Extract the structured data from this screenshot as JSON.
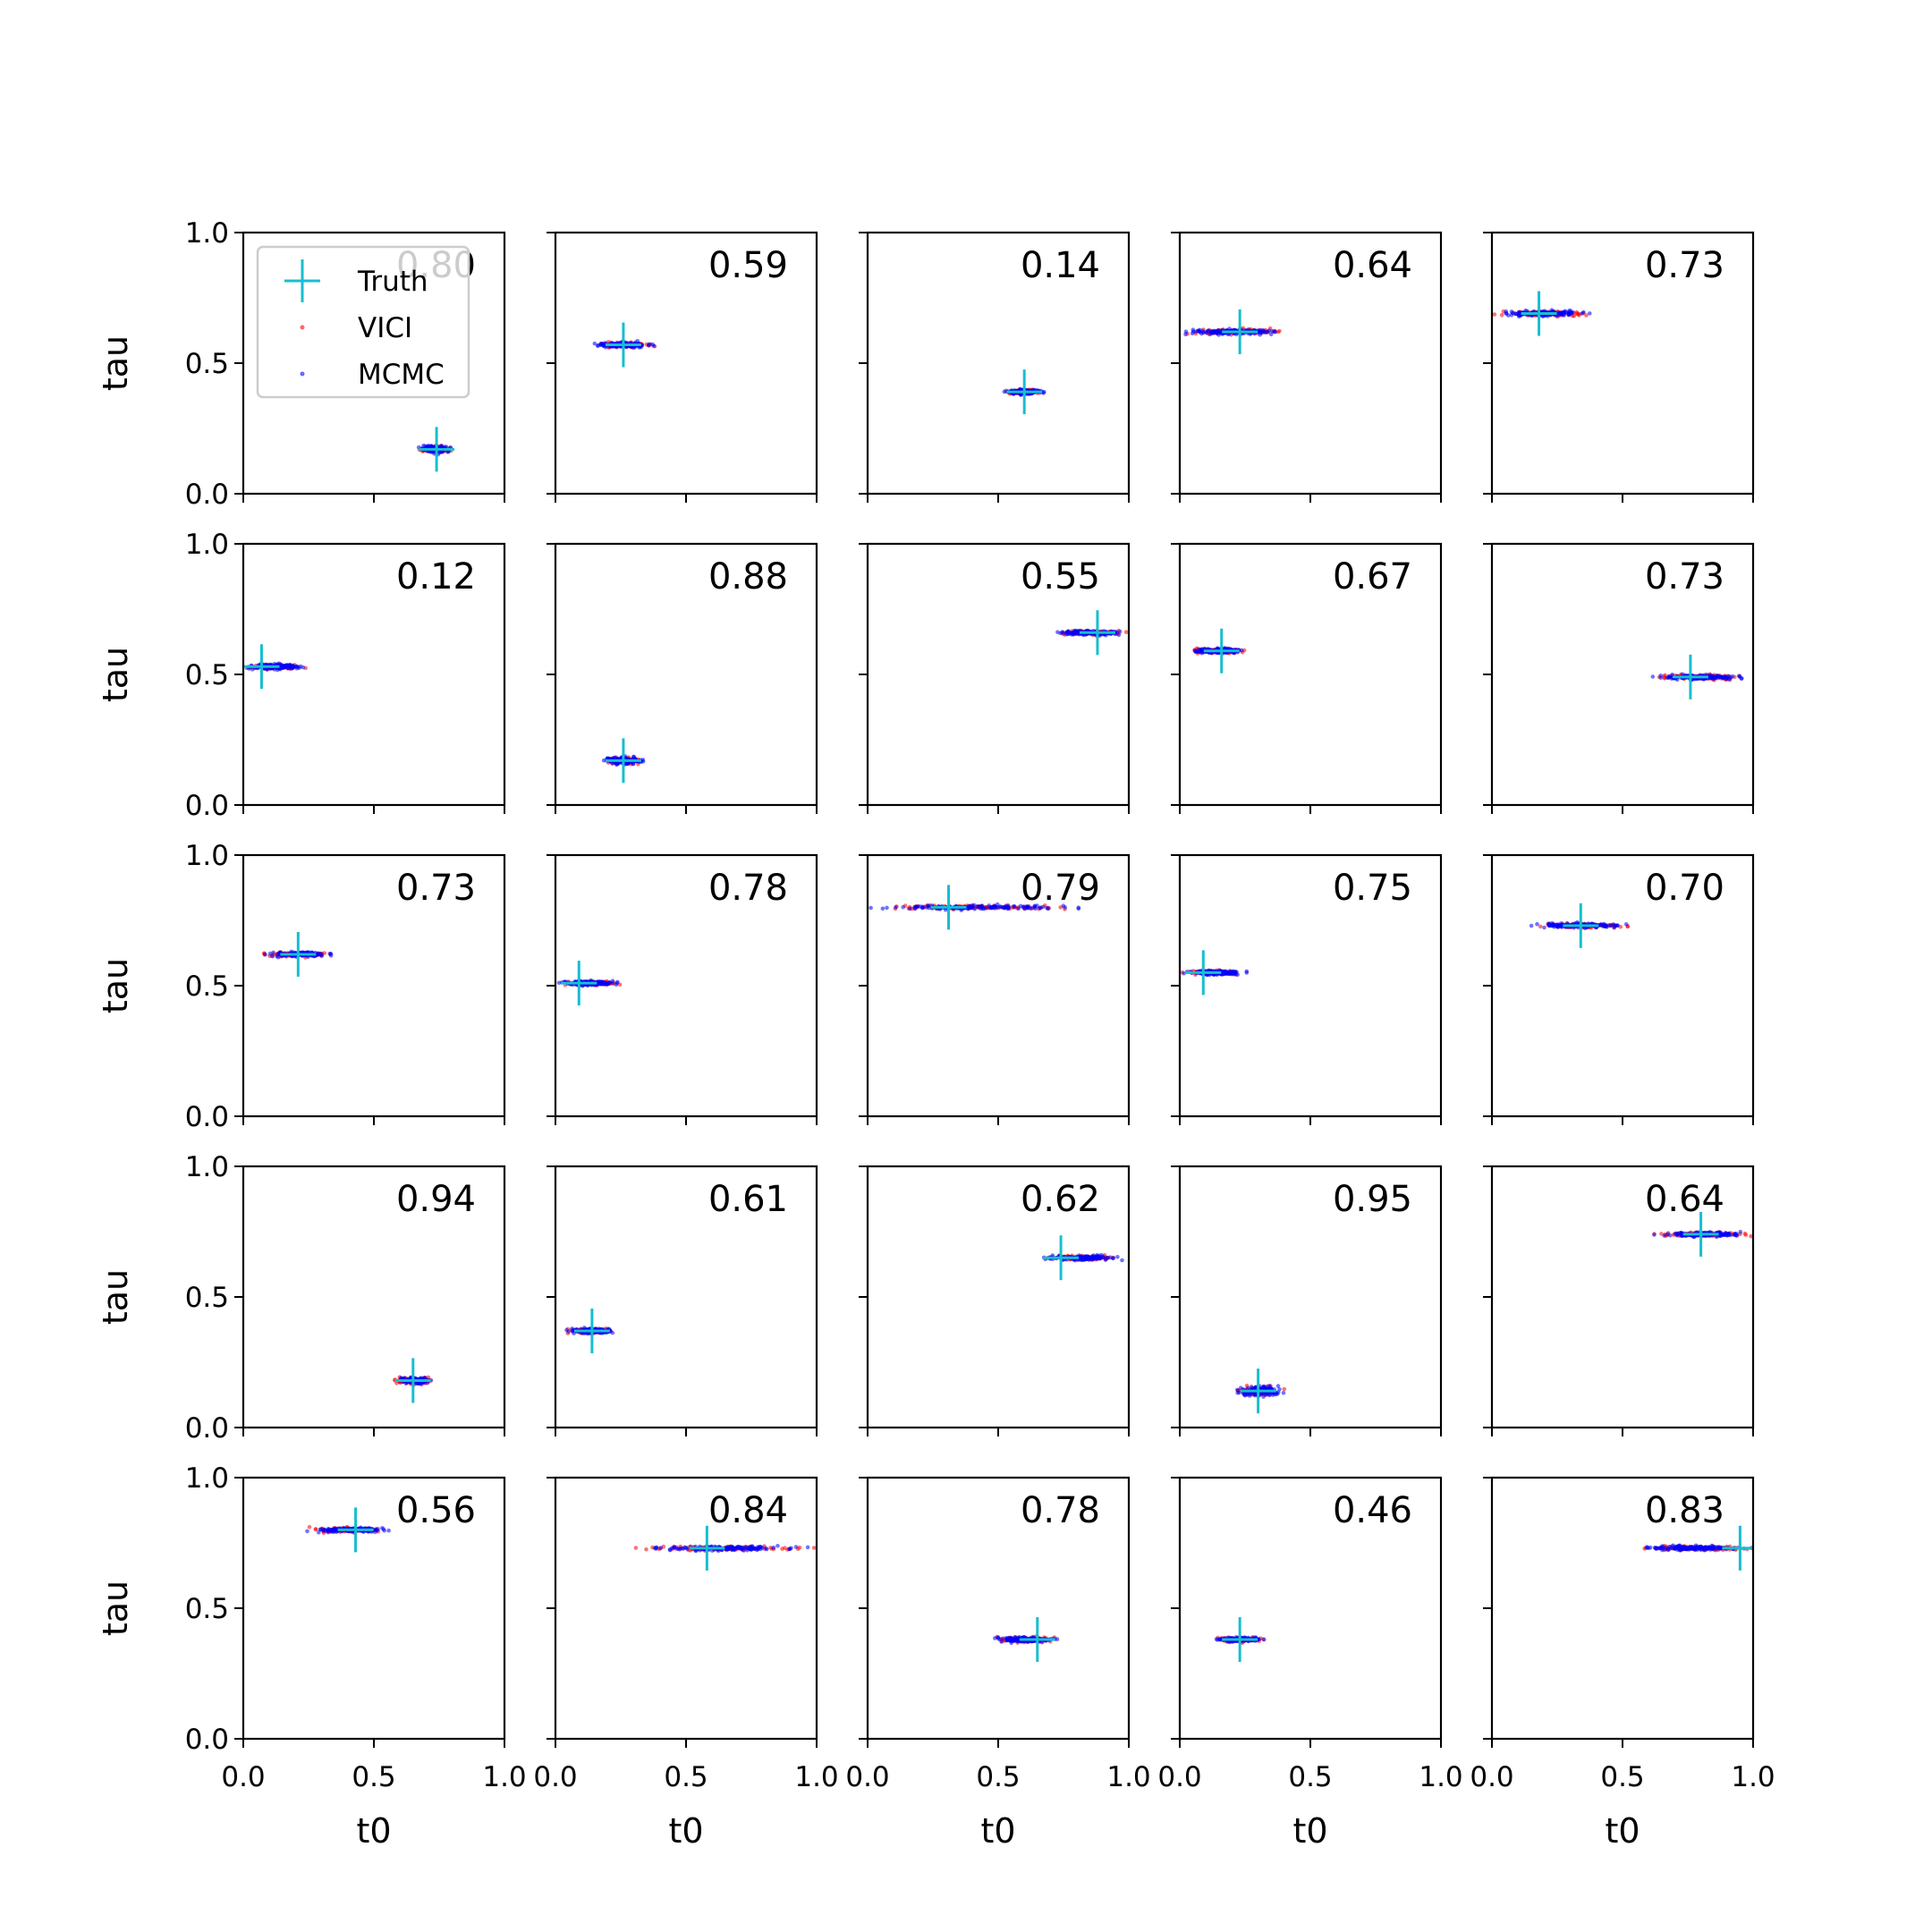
{
  "chart_data": {
    "type": "scatter",
    "grid": "5x5",
    "xlim": [
      0,
      1
    ],
    "ylim": [
      0,
      1
    ],
    "xlabel": "t0",
    "ylabel": "tau",
    "x_ticks": [
      "0.0",
      "0.5",
      "1.0"
    ],
    "y_ticks": [
      "0.0",
      "0.5",
      "1.0"
    ],
    "legend": {
      "position": "upper-left of first panel",
      "entries": [
        {
          "name": "Truth",
          "marker": "plus",
          "color": "#17becf"
        },
        {
          "name": "VICI",
          "marker": "dot",
          "color": "#ff0000"
        },
        {
          "name": "MCMC",
          "marker": "dot",
          "color": "#0000ff"
        }
      ]
    },
    "panels": [
      {
        "label": "0.80",
        "truth": [
          0.74,
          0.17
        ],
        "cloud": {
          "x": [
            0.67,
            0.8
          ],
          "y": 0.17,
          "thick": 0.022
        }
      },
      {
        "label": "0.59",
        "truth": [
          0.26,
          0.57
        ],
        "cloud": {
          "x": [
            0.14,
            0.38
          ],
          "y": 0.57,
          "thick": 0.016
        }
      },
      {
        "label": "0.14",
        "truth": [
          0.6,
          0.39
        ],
        "cloud": {
          "x": [
            0.52,
            0.68
          ],
          "y": 0.39,
          "thick": 0.014
        }
      },
      {
        "label": "0.64",
        "truth": [
          0.23,
          0.62
        ],
        "cloud": {
          "x": [
            0.01,
            0.41
          ],
          "y": 0.62,
          "thick": 0.016
        }
      },
      {
        "label": "0.73",
        "truth": [
          0.18,
          0.69
        ],
        "cloud": {
          "x": [
            0.01,
            0.38
          ],
          "y": 0.69,
          "thick": 0.016
        }
      },
      {
        "label": "0.12",
        "truth": [
          0.07,
          0.53
        ],
        "cloud": {
          "x": [
            0.01,
            0.24
          ],
          "y": 0.53,
          "thick": 0.016
        }
      },
      {
        "label": "0.88",
        "truth": [
          0.26,
          0.17
        ],
        "cloud": {
          "x": [
            0.18,
            0.34
          ],
          "y": 0.17,
          "thick": 0.022
        }
      },
      {
        "label": "0.55",
        "truth": [
          0.88,
          0.66
        ],
        "cloud": {
          "x": [
            0.7,
            0.99
          ],
          "y": 0.66,
          "thick": 0.014
        }
      },
      {
        "label": "0.67",
        "truth": [
          0.16,
          0.59
        ],
        "cloud": {
          "x": [
            0.03,
            0.27
          ],
          "y": 0.59,
          "thick": 0.016
        }
      },
      {
        "label": "0.73",
        "truth": [
          0.76,
          0.49
        ],
        "cloud": {
          "x": [
            0.61,
            0.99
          ],
          "y": 0.49,
          "thick": 0.016
        }
      },
      {
        "label": "0.73",
        "truth": [
          0.21,
          0.62
        ],
        "cloud": {
          "x": [
            0.08,
            0.34
          ],
          "y": 0.62,
          "thick": 0.014
        }
      },
      {
        "label": "0.78",
        "truth": [
          0.09,
          0.51
        ],
        "cloud": {
          "x": [
            0.01,
            0.25
          ],
          "y": 0.51,
          "thick": 0.014
        }
      },
      {
        "label": "0.79",
        "truth": [
          0.31,
          0.8
        ],
        "cloud": {
          "x": [
            0.0,
            0.82
          ],
          "y": 0.8,
          "thick": 0.014
        }
      },
      {
        "label": "0.75",
        "truth": [
          0.09,
          0.55
        ],
        "cloud": {
          "x": [
            0.01,
            0.26
          ],
          "y": 0.55,
          "thick": 0.014
        }
      },
      {
        "label": "0.70",
        "truth": [
          0.34,
          0.73
        ],
        "cloud": {
          "x": [
            0.14,
            0.52
          ],
          "y": 0.73,
          "thick": 0.014
        }
      },
      {
        "label": "0.94",
        "truth": [
          0.65,
          0.18
        ],
        "cloud": {
          "x": [
            0.58,
            0.73
          ],
          "y": 0.18,
          "thick": 0.02
        }
      },
      {
        "label": "0.61",
        "truth": [
          0.14,
          0.37
        ],
        "cloud": {
          "x": [
            0.04,
            0.23
          ],
          "y": 0.37,
          "thick": 0.016
        }
      },
      {
        "label": "0.62",
        "truth": [
          0.74,
          0.65
        ],
        "cloud": {
          "x": [
            0.66,
            0.98
          ],
          "y": 0.65,
          "thick": 0.014
        }
      },
      {
        "label": "0.95",
        "truth": [
          0.3,
          0.14
        ],
        "cloud": {
          "x": [
            0.21,
            0.4
          ],
          "y": 0.14,
          "thick": 0.03
        }
      },
      {
        "label": "0.64",
        "truth": [
          0.8,
          0.74
        ],
        "cloud": {
          "x": [
            0.61,
            1.0
          ],
          "y": 0.74,
          "thick": 0.014
        }
      },
      {
        "label": "0.56",
        "truth": [
          0.43,
          0.8
        ],
        "cloud": {
          "x": [
            0.24,
            0.57
          ],
          "y": 0.8,
          "thick": 0.014
        }
      },
      {
        "label": "0.84",
        "truth": [
          0.58,
          0.73
        ],
        "cloud": {
          "x": [
            0.3,
            0.99
          ],
          "y": 0.73,
          "thick": 0.014
        }
      },
      {
        "label": "0.78",
        "truth": [
          0.65,
          0.38
        ],
        "cloud": {
          "x": [
            0.47,
            0.73
          ],
          "y": 0.38,
          "thick": 0.016
        }
      },
      {
        "label": "0.46",
        "truth": [
          0.23,
          0.38
        ],
        "cloud": {
          "x": [
            0.12,
            0.33
          ],
          "y": 0.38,
          "thick": 0.014
        }
      },
      {
        "label": "0.83",
        "truth": [
          0.95,
          0.73
        ],
        "cloud": {
          "x": [
            0.56,
            1.0
          ],
          "y": 0.73,
          "thick": 0.014
        }
      }
    ]
  }
}
